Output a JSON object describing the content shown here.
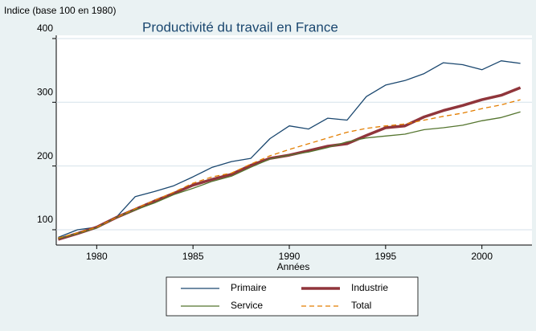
{
  "chart_data": {
    "type": "line",
    "title": "Productivité du travail en France",
    "y_label": "Indice (base 100 en 1980)",
    "x_label": "Années",
    "x": [
      1978,
      1979,
      1980,
      1981,
      1982,
      1983,
      1984,
      1985,
      1986,
      1987,
      1988,
      1989,
      1990,
      1991,
      1992,
      1993,
      1994,
      1995,
      1996,
      1997,
      1998,
      1999,
      2000,
      2001,
      2002
    ],
    "series": [
      {
        "name": "Primaire",
        "color": "#1a476f",
        "width": 1.3,
        "dash": null,
        "values": [
          88,
          100,
          104,
          119,
          152,
          160,
          169,
          183,
          198,
          207,
          212,
          243,
          263,
          258,
          275,
          272,
          309,
          327,
          334,
          345,
          362,
          359,
          351,
          365,
          361
        ]
      },
      {
        "name": "Industrie",
        "color": "#90353b",
        "width": 3.5,
        "dash": null,
        "values": [
          85,
          94,
          104,
          119,
          132,
          145,
          157,
          170,
          179,
          187,
          201,
          212,
          217,
          224,
          231,
          235,
          248,
          260,
          263,
          277,
          287,
          295,
          304,
          311,
          323
        ]
      },
      {
        "name": "Service",
        "color": "#55752f",
        "width": 1.3,
        "dash": null,
        "values": [
          86,
          94,
          103,
          119,
          131,
          142,
          155,
          165,
          176,
          184,
          198,
          211,
          217,
          222,
          229,
          238,
          244,
          247,
          250,
          257,
          260,
          264,
          271,
          276,
          285
        ]
      },
      {
        "name": "Total",
        "color": "#e37e00",
        "width": 1.3,
        "dash": "6 4",
        "values": [
          87,
          95,
          104,
          119,
          133,
          146,
          159,
          173,
          183,
          189,
          203,
          216,
          226,
          235,
          244,
          253,
          259,
          263,
          266,
          272,
          278,
          283,
          290,
          296,
          304
        ]
      }
    ],
    "xlim": [
      1977.9,
      2002.6
    ],
    "xticks": [
      1980,
      1985,
      1990,
      1995,
      2000
    ],
    "ylim": [
      76,
      405
    ],
    "yticks": [
      100,
      200,
      300,
      400
    ],
    "grid": true,
    "legend": "bottom"
  }
}
